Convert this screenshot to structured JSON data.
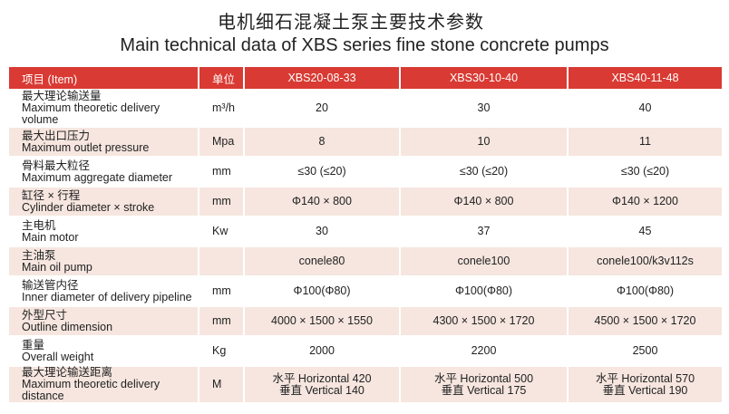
{
  "header": {
    "title": "电机细石混凝土泵主要技术参数",
    "subtitle": "Main technical data of XBS series fine stone concrete pumps"
  },
  "table": {
    "columns": [
      "项目 (Item)",
      "单位",
      "XBS20-08-33",
      "XBS30-10-40",
      "XBS40-11-48"
    ],
    "rows": [
      [
        [
          "最大理论输送量",
          "Maximum theoretic delivery volume"
        ],
        "m³/h",
        "20",
        "30",
        "40"
      ],
      [
        [
          "最大出口压力",
          "Maximum outlet pressure"
        ],
        "Mpa",
        "8",
        "10",
        "11"
      ],
      [
        [
          "骨料最大粒径",
          "Maximum aggregate diameter"
        ],
        "mm",
        "≤30 (≤20)",
        "≤30 (≤20)",
        "≤30 (≤20)"
      ],
      [
        [
          "缸径 × 行程",
          "Cylinder diameter × stroke"
        ],
        "mm",
        "Φ140 × 800",
        "Φ140 × 800",
        "Φ140 × 1200"
      ],
      [
        [
          "主电机",
          "Main motor"
        ],
        "Kw",
        "30",
        "37",
        "45"
      ],
      [
        [
          "主油泵",
          "Main oil pump"
        ],
        null,
        "conele80",
        "conele100",
        "conele100/k3v112s"
      ],
      [
        [
          "输送管内径",
          "Inner diameter of delivery pipeline"
        ],
        "mm",
        "Φ100(Φ80)",
        "Φ100(Φ80)",
        "Φ100(Φ80)"
      ],
      [
        [
          "外型尺寸",
          "Outline dimension"
        ],
        "mm",
        "4000 × 1500 × 1550",
        "4300 × 1500 × 1720",
        "4500 × 1500 × 1720"
      ],
      [
        [
          "重量",
          "Overall weight"
        ],
        "Kg",
        "2000",
        "2200",
        "2500"
      ],
      [
        [
          "最大理论输送距离",
          "Maximum theoretic delivery distance"
        ],
        "M",
        [
          "水平 Horizontal 420",
          "垂直 Vertical 140"
        ],
        [
          "水平 Horizontal 500",
          "垂直 Vertical 175"
        ],
        [
          "水平 Horizontal 570",
          "垂直 Vertical 190"
        ]
      ]
    ]
  }
}
